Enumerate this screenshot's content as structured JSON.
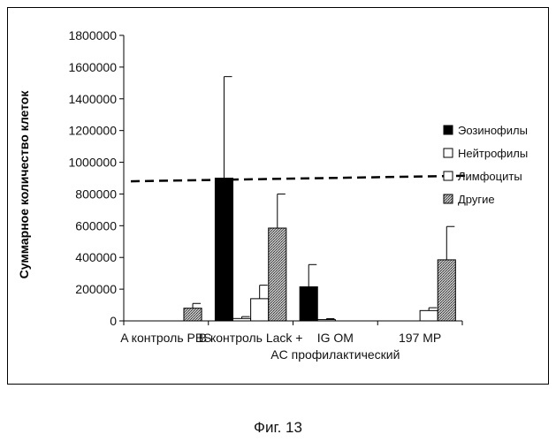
{
  "chart_data": {
    "type": "bar",
    "title": "",
    "ylabel": "Суммарное количество клеток",
    "xlabel": "",
    "ylim": [
      0,
      1800000
    ],
    "yticks": [
      0,
      200000,
      400000,
      600000,
      800000,
      1000000,
      1200000,
      1400000,
      1600000,
      1800000
    ],
    "ytick_labels": [
      "0",
      "200000",
      "400000",
      "600000",
      "800000",
      "1000000",
      "1200000",
      "1400000",
      "1600000",
      "1800000"
    ],
    "categories": [
      "A контроль PBS",
      "B контроль Lack +",
      "IG OM AC профилактический",
      "197 MP"
    ],
    "category_label_lines": [
      [
        "A контроль PBS"
      ],
      [
        "B контроль Lack +"
      ],
      [
        "IG OM",
        "AC профилактический"
      ],
      [
        "197 MP"
      ]
    ],
    "series": [
      {
        "name": "Эозинофилы",
        "color": "#000000",
        "fill": "solid",
        "values": [
          0,
          900000,
          215000,
          0
        ],
        "errors": [
          0,
          640000,
          140000,
          0
        ]
      },
      {
        "name": "Нейтрофилы",
        "color": "#ffffff",
        "fill": "white",
        "values": [
          0,
          15000,
          8000,
          0
        ],
        "errors": [
          0,
          12000,
          6000,
          0
        ]
      },
      {
        "name": "Лимфоциты",
        "color": "#ffffff",
        "fill": "white",
        "values": [
          0,
          140000,
          0,
          65000
        ],
        "errors": [
          0,
          85000,
          0,
          18000
        ]
      },
      {
        "name": "Другие",
        "color": "#888888",
        "fill": "hatched",
        "values": [
          80000,
          585000,
          0,
          385000
        ],
        "errors": [
          30000,
          215000,
          0,
          210000
        ]
      }
    ],
    "reference_line": {
      "style": "dashed",
      "y_start": 880000,
      "y_end": 915000
    },
    "grid": false,
    "legend_position": "right"
  },
  "caption": "Фиг. 13"
}
